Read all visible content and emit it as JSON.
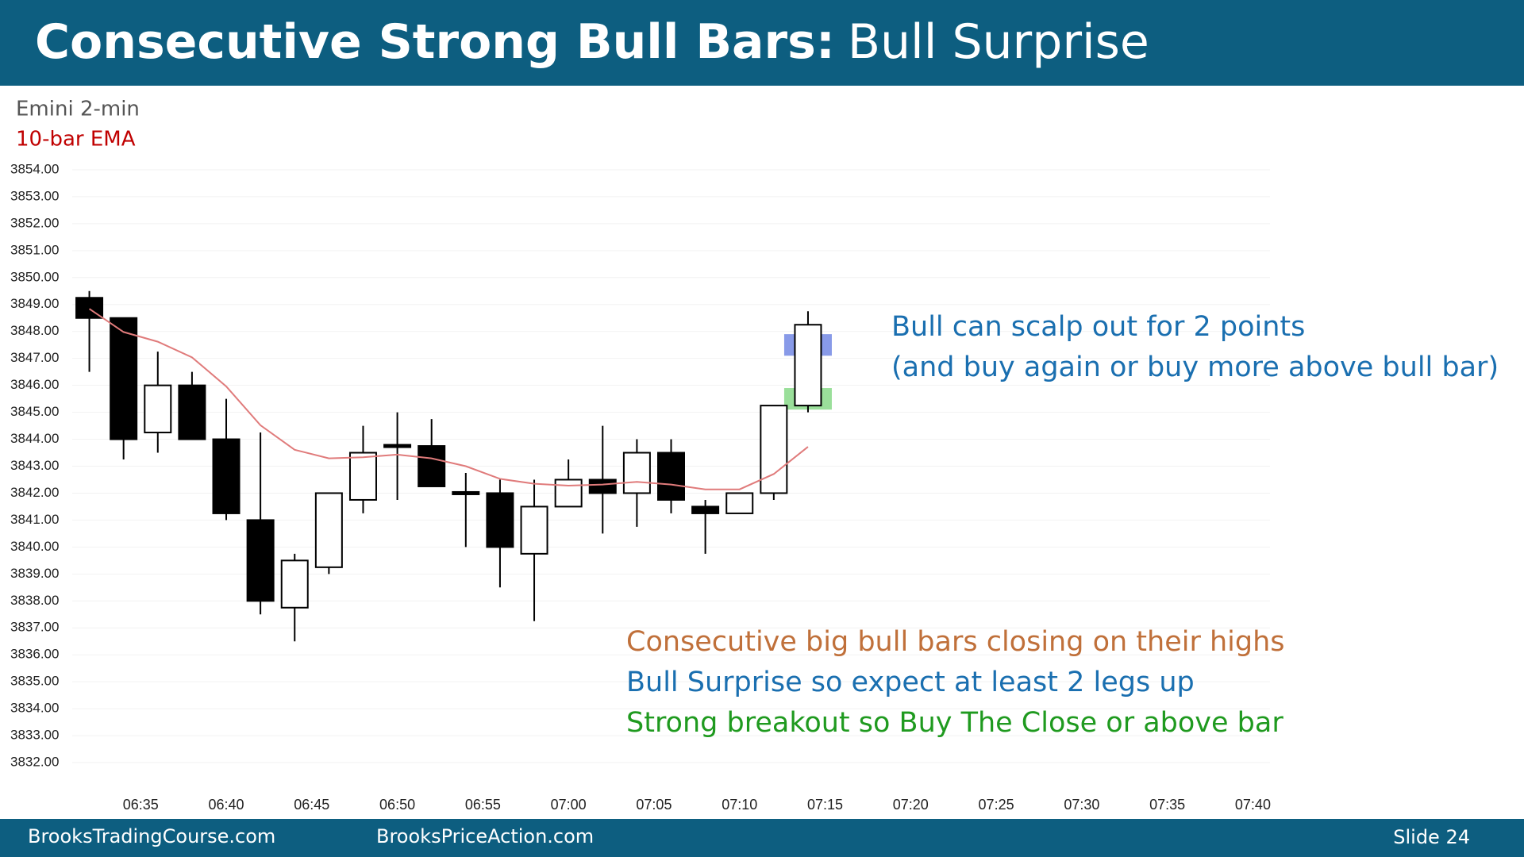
{
  "header": {
    "title_bold": "Consecutive Strong Bull Bars:",
    "title_rest": "Bull Surprise"
  },
  "chart_data": {
    "type": "candlestick",
    "title": "Emini 2-min",
    "x": [
      "06:32",
      "06:34",
      "06:36",
      "06:38",
      "06:40",
      "06:42",
      "06:44",
      "06:46",
      "06:48",
      "06:50",
      "06:52",
      "06:54",
      "06:56",
      "06:58",
      "07:00",
      "07:02",
      "07:04",
      "07:06",
      "07:08",
      "07:10",
      "07:12",
      "07:14"
    ],
    "open": [
      3849.25,
      3848.5,
      3844.25,
      3846,
      3844,
      3841,
      3837.75,
      3839.25,
      3841.75,
      3843.75,
      3843.75,
      3842,
      3842,
      3839.75,
      3841.5,
      3842.5,
      3842,
      3843.5,
      3841.5,
      3841.25,
      3842,
      3845.25
    ],
    "high": [
      3849.5,
      3848.5,
      3847.25,
      3846.5,
      3845.5,
      3844.25,
      3839.75,
      3842,
      3844.5,
      3845,
      3844.75,
      3842.75,
      3842.5,
      3842.5,
      3843.25,
      3844.5,
      3844,
      3844,
      3841.75,
      3842,
      3845.25,
      3848.75
    ],
    "low": [
      3846.5,
      3843.25,
      3843.5,
      3844,
      3841,
      3837.5,
      3836.5,
      3839,
      3841.25,
      3841.75,
      3842.25,
      3840,
      3838.5,
      3837.25,
      3841.5,
      3840.5,
      3840.75,
      3841.25,
      3839.75,
      3841.25,
      3841.75,
      3845
    ],
    "close": [
      3848.5,
      3844,
      3846,
      3844,
      3841.25,
      3838,
      3839.5,
      3842,
      3843.5,
      3843.75,
      3842.25,
      3842,
      3840,
      3841.5,
      3842.5,
      3842,
      3843.5,
      3841.75,
      3841.25,
      3842,
      3845.25,
      3848.25
    ],
    "up_color": "#ffffff",
    "down_color": "#000000",
    "overlay": {
      "name": "10-bar EMA",
      "color": "#e07b7b",
      "label_color": "#c00000",
      "values": [
        3848.84,
        3847.98,
        3847.62,
        3847.04,
        3845.96,
        3844.52,
        3843.61,
        3843.29,
        3843.33,
        3843.43,
        3843.29,
        3843.0,
        3842.53,
        3842.35,
        3842.28,
        3842.32,
        3842.42,
        3842.32,
        3842.14,
        3842.14,
        3842.71,
        3843.72
      ]
    },
    "zones": [
      {
        "from": 3847.1,
        "to": 3847.9,
        "x": "07:14",
        "color": "#7b8fe6"
      },
      {
        "from": 3845.1,
        "to": 3845.9,
        "x": "07:14",
        "color": "#8fdc8f"
      }
    ],
    "annotations": [
      {
        "text": "Bull can scalp out for 2 points",
        "color": "#1a6fb0"
      },
      {
        "text": "(and buy again or buy more above bull bar)",
        "color": "#1a6fb0"
      },
      {
        "text": "Consecutive big bull bars closing on their highs",
        "color": "#c0703a"
      },
      {
        "text": "Bull Surprise so expect at least 2 legs up",
        "color": "#1a6fb0"
      },
      {
        "text": "Strong breakout so Buy The Close or above bar",
        "color": "#1f9a1f"
      }
    ],
    "xlim": [
      "06:31",
      "07:41"
    ],
    "xticks": [
      "06:35",
      "06:40",
      "06:45",
      "06:50",
      "06:55",
      "07:00",
      "07:05",
      "07:10",
      "07:15",
      "07:20",
      "07:25",
      "07:30",
      "07:35",
      "07:40"
    ],
    "ylim": [
      3831.5,
      3854.5
    ],
    "yticks": [
      {
        "value": 3854,
        "label": "3854.00"
      },
      {
        "value": 3853,
        "label": "3853.00"
      },
      {
        "value": 3852,
        "label": "3852.00"
      },
      {
        "value": 3851,
        "label": "3851.00"
      },
      {
        "value": 3850,
        "label": "3850.00"
      },
      {
        "value": 3849,
        "label": "3849.00"
      },
      {
        "value": 3848,
        "label": "3848.00"
      },
      {
        "value": 3847,
        "label": "3847.00"
      },
      {
        "value": 3846,
        "label": "3846.00"
      },
      {
        "value": 3845,
        "label": "3845.00"
      },
      {
        "value": 3844,
        "label": "3844.00"
      },
      {
        "value": 3843,
        "label": "3843.00"
      },
      {
        "value": 3842,
        "label": "3842.00"
      },
      {
        "value": 3841,
        "label": "3841.00"
      },
      {
        "value": 3840,
        "label": "3840.00"
      },
      {
        "value": 3839,
        "label": "3839.00"
      },
      {
        "value": 3838,
        "label": "3838.00"
      },
      {
        "value": 3837,
        "label": "3837.00"
      },
      {
        "value": 3836,
        "label": "3836.00"
      },
      {
        "value": 3835,
        "label": "3835.00"
      },
      {
        "value": 3834,
        "label": "3834.00"
      },
      {
        "value": 3833,
        "label": "3833.00"
      },
      {
        "value": 3832,
        "label": "3832.00"
      }
    ],
    "grid": true
  },
  "footer": {
    "left": "BrooksTradingCourse.com",
    "middle": "BrooksPriceAction.com",
    "right": "Slide  24"
  }
}
